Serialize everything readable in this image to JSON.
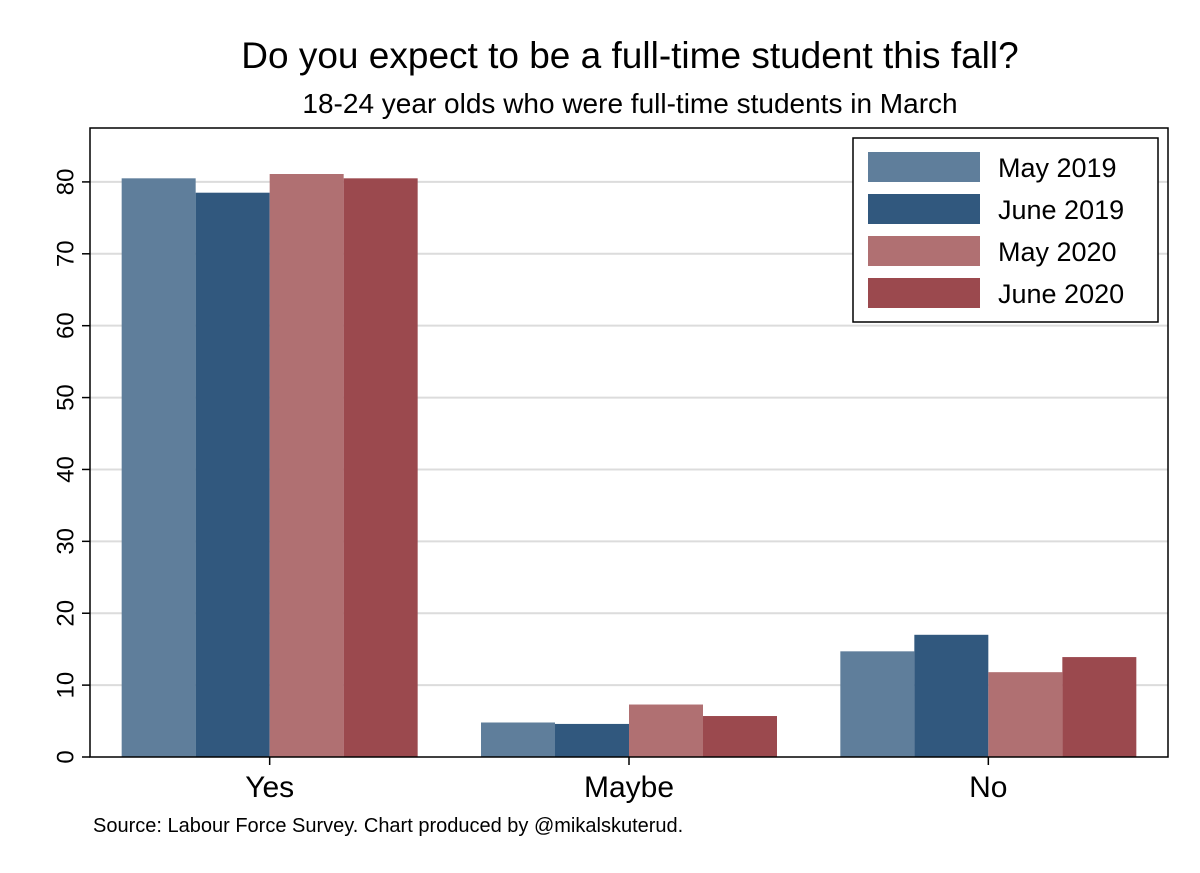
{
  "chart_data": {
    "type": "bar",
    "title": "Do you expect to be a full-time student this fall?",
    "subtitle": "18-24 year olds who were full-time students in March",
    "categories": [
      "Yes",
      "Maybe",
      "No"
    ],
    "series": [
      {
        "name": "May 2019",
        "color": "#5f7e9b",
        "values": [
          80.5,
          4.8,
          14.7
        ]
      },
      {
        "name": "June 2019",
        "color": "#31587e",
        "values": [
          78.5,
          4.6,
          17.0
        ]
      },
      {
        "name": "May 2020",
        "color": "#b07072",
        "values": [
          81.1,
          7.3,
          11.8
        ]
      },
      {
        "name": "June 2020",
        "color": "#9b494e",
        "values": [
          80.5,
          5.7,
          13.9
        ]
      }
    ],
    "ylim": [
      0,
      87.5
    ],
    "yticks": [
      0,
      10,
      20,
      30,
      40,
      50,
      60,
      70,
      80
    ],
    "grid": true,
    "legend_position": "top-right",
    "note": "Source: Labour Force Survey. Chart produced by @mikalskuterud."
  }
}
